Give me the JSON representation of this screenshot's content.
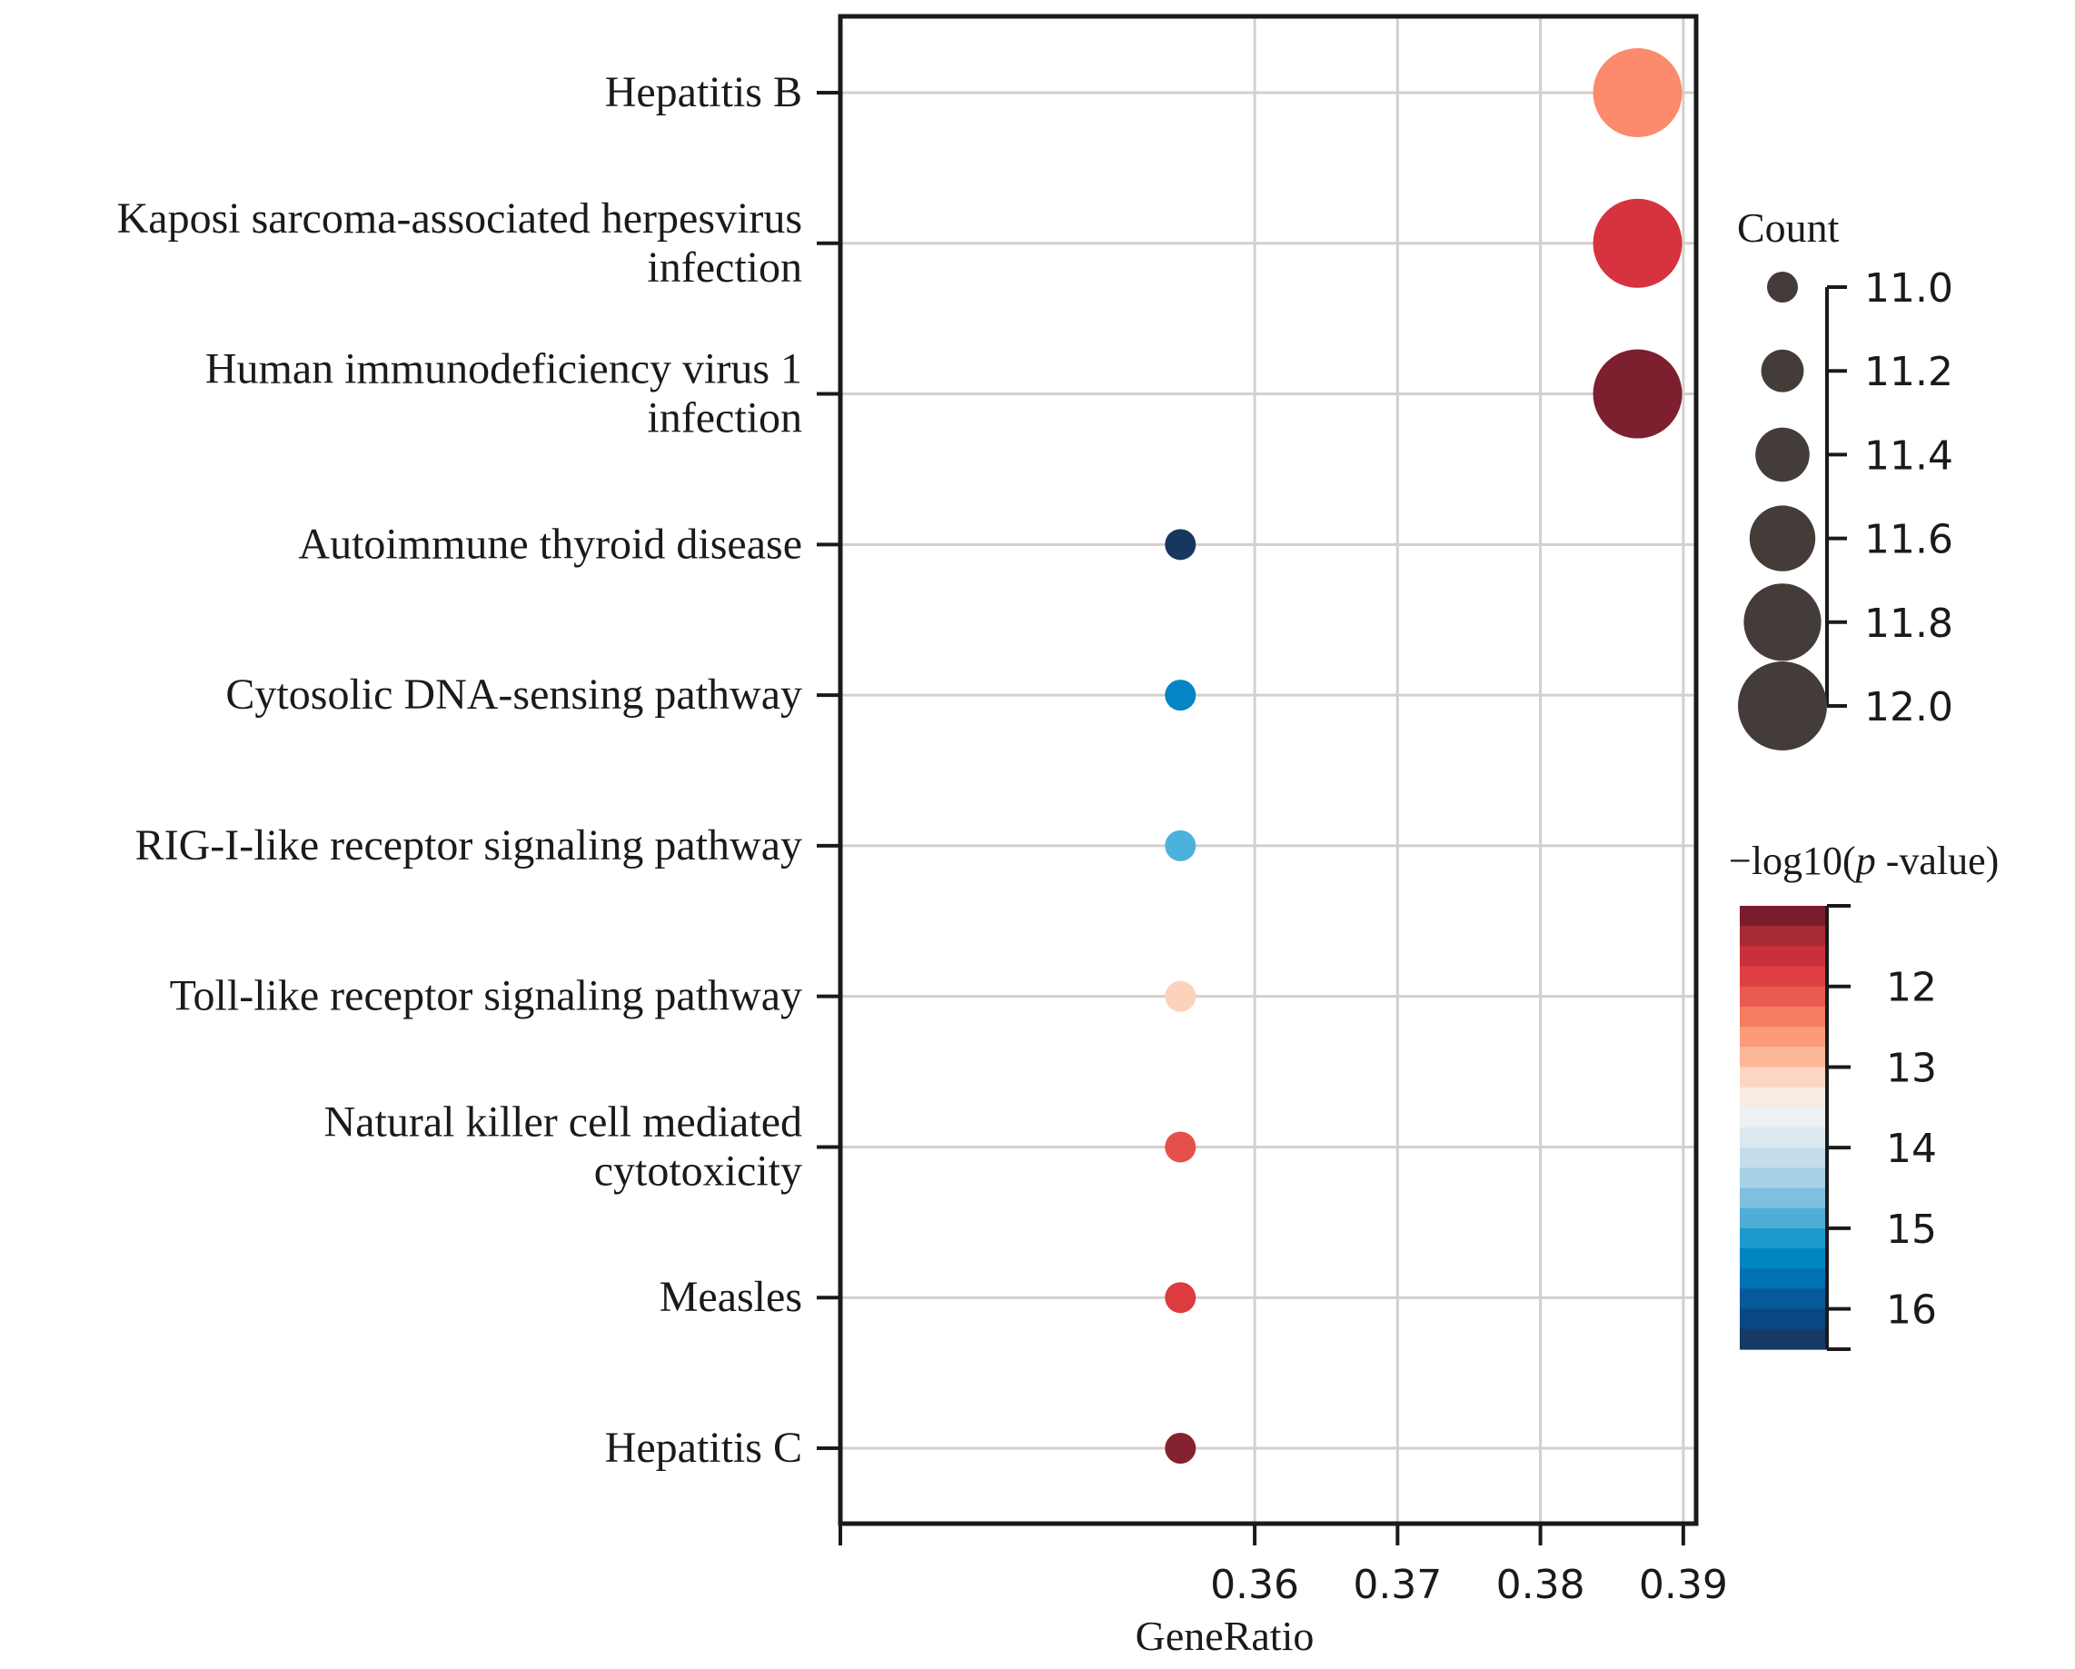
{
  "chart_data": {
    "type": "scatter",
    "subtype": "dot-plot",
    "xlabel": "GeneRatio",
    "ylabel": "",
    "xlim": [
      0.331,
      0.3909
    ],
    "x_ticks": [
      {
        "value": 0.36,
        "label": "0.36"
      },
      {
        "value": 0.37,
        "label": "0.37"
      },
      {
        "value": 0.38,
        "label": "0.38"
      },
      {
        "value": 0.39,
        "label": "0.39"
      }
    ],
    "grid": true,
    "points": [
      {
        "category": "Hepatitis B",
        "label_lines": [
          "Hepatitis B"
        ],
        "x": 0.3868,
        "count": 12,
        "neglog10p": 12.6,
        "color": "#fb8b6c"
      },
      {
        "category": "Kaposi sarcoma-associated herpesvirus infection",
        "label_lines": [
          "Kaposi sarcoma-associated herpesvirus",
          "infection"
        ],
        "x": 0.3868,
        "count": 12,
        "neglog10p": 11.8,
        "color": "#d6333e"
      },
      {
        "category": "Human immunodeficiency virus 1 infection",
        "label_lines": [
          "Human immunodeficiency virus 1",
          "infection"
        ],
        "x": 0.3868,
        "count": 12,
        "neglog10p": 11.0,
        "color": "#7d1f2e"
      },
      {
        "category": "Autoimmune thyroid disease",
        "label_lines": [
          "Autoimmune thyroid disease"
        ],
        "x": 0.3548,
        "count": 11,
        "neglog10p": 16.6,
        "color": "#18375e"
      },
      {
        "category": "Cytosolic DNA-sensing pathway",
        "label_lines": [
          "Cytosolic DNA-sensing pathway"
        ],
        "x": 0.3548,
        "count": 11,
        "neglog10p": 15.2,
        "color": "#0585c3"
      },
      {
        "category": "RIG-I-like receptor signaling pathway",
        "label_lines": [
          "RIG-I-like receptor signaling pathway"
        ],
        "x": 0.3548,
        "count": 11,
        "neglog10p": 14.8,
        "color": "#4cb2dc"
      },
      {
        "category": "Toll-like receptor signaling pathway",
        "label_lines": [
          "Toll-like receptor signaling pathway"
        ],
        "x": 0.3548,
        "count": 11,
        "neglog10p": 13.2,
        "color": "#fdd2bc"
      },
      {
        "category": "Natural killer cell mediated cytotoxicity",
        "label_lines": [
          "Natural killer cell mediated",
          "cytotoxicity"
        ],
        "x": 0.3548,
        "count": 11,
        "neglog10p": 12.0,
        "color": "#e4504a"
      },
      {
        "category": "Measles",
        "label_lines": [
          "Measles"
        ],
        "x": 0.3548,
        "count": 11,
        "neglog10p": 11.8,
        "color": "#dc3b40"
      },
      {
        "category": "Hepatitis C",
        "label_lines": [
          "Hepatitis C"
        ],
        "x": 0.3548,
        "count": 11,
        "neglog10p": 11.1,
        "color": "#85222f"
      }
    ],
    "size_legend": {
      "title": "Count",
      "range": [
        11.0,
        12.0
      ],
      "ticks": [
        {
          "value": 11.0,
          "label": "11.0"
        },
        {
          "value": 11.2,
          "label": "11.2"
        },
        {
          "value": 11.4,
          "label": "11.4"
        },
        {
          "value": 11.6,
          "label": "11.6"
        },
        {
          "value": 11.8,
          "label": "11.8"
        },
        {
          "value": 12.0,
          "label": "12.0"
        }
      ],
      "marker_color": "#443c39"
    },
    "color_legend": {
      "title_prefix": "−log10(",
      "title_italic": "p",
      "title_suffix": " -value)",
      "range": [
        11.0,
        16.5
      ],
      "ticks": [
        {
          "value": 12,
          "label": "12"
        },
        {
          "value": 13,
          "label": "13"
        },
        {
          "value": 14,
          "label": "14"
        },
        {
          "value": 15,
          "label": "15"
        },
        {
          "value": 16,
          "label": "16"
        }
      ],
      "colors_top_to_bottom": [
        "#7b1c2c",
        "#a72b35",
        "#c9303b",
        "#de3f44",
        "#ea5a4f",
        "#f57b61",
        "#fb9b7a",
        "#fdb89a",
        "#fdd5c3",
        "#f8ebe4",
        "#eef0f2",
        "#dbe8f0",
        "#c4dcec",
        "#a6d0e6",
        "#7fc0df",
        "#4fadd7",
        "#1c99cd",
        "#0184c2",
        "#0271b2",
        "#06599b",
        "#0a4681",
        "#163a66"
      ]
    }
  }
}
